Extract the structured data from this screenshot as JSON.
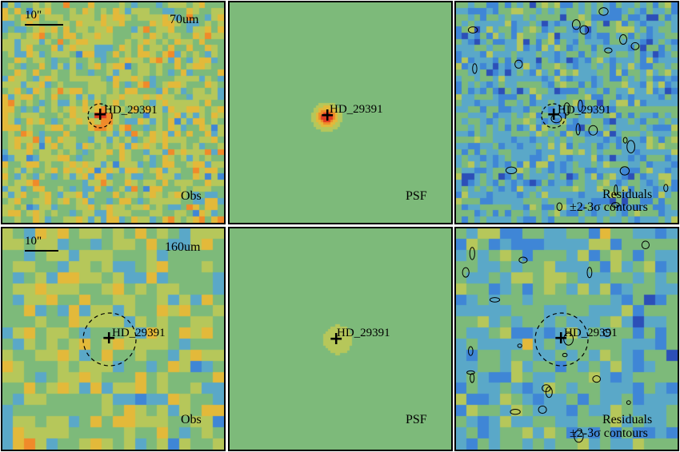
{
  "scale_bar_label": "10\"",
  "star_label": "HD_29391",
  "rows": [
    {
      "band": "70um",
      "obs_label": "Obs",
      "psf_label": "PSF",
      "residuals_label": "Residuals",
      "contours_label": "±2-3σ contours"
    },
    {
      "band": "160um",
      "obs_label": "Obs",
      "psf_label": "PSF",
      "residuals_label": "Residuals",
      "contours_label": "±2-3σ contours"
    }
  ],
  "colormap": [
    "#3a1f8a",
    "#2c4fb8",
    "#3f86d6",
    "#5aa8c8",
    "#7dba7a",
    "#b6c75a",
    "#e3b93a",
    "#f08a2a",
    "#e03a22"
  ],
  "contour_color": "#000000"
}
